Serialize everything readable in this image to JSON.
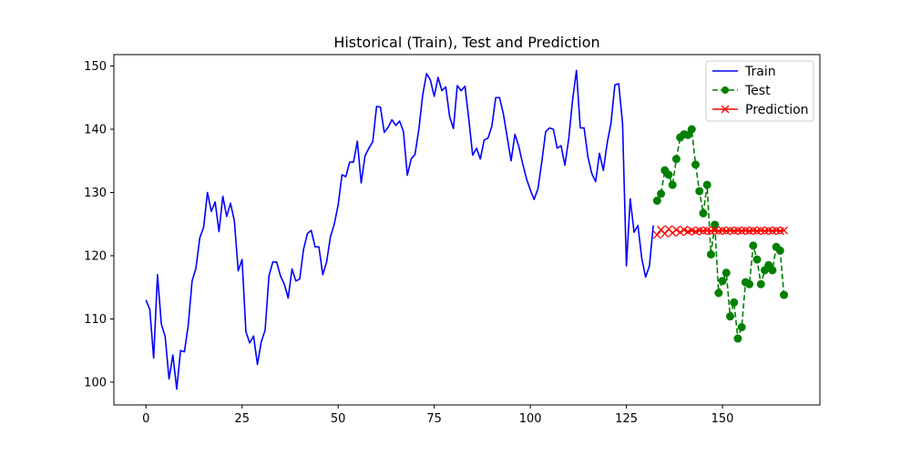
{
  "chart_data": {
    "type": "line",
    "title": "Historical (Train), Test and Prediction",
    "xlabel": "",
    "ylabel": "",
    "xlim": [
      -8.35,
      175.35
    ],
    "ylim": [
      96.4,
      151.8
    ],
    "x_ticks": [
      0,
      25,
      50,
      75,
      100,
      125,
      150
    ],
    "y_ticks": [
      100,
      110,
      120,
      130,
      140,
      150
    ],
    "x_tick_labels": [
      "0",
      "25",
      "50",
      "75",
      "100",
      "125",
      "150"
    ],
    "y_tick_labels": [
      "100",
      "110",
      "120",
      "130",
      "140",
      "150"
    ],
    "grid": false,
    "legend_position": "top-right",
    "series": [
      {
        "name": "Train",
        "color": "#0000ff",
        "line_style": "solid",
        "marker": "none",
        "x_start": 0,
        "values": [
          113.0,
          111.5,
          103.8,
          117.0,
          109.2,
          107.2,
          100.5,
          104.3,
          98.9,
          105.0,
          104.8,
          109.0,
          116.0,
          118.0,
          122.8,
          124.5,
          130.0,
          127.0,
          128.5,
          123.8,
          129.4,
          126.2,
          128.3,
          125.5,
          117.6,
          119.4,
          108.0,
          106.2,
          107.3,
          102.8,
          106.4,
          108.2,
          116.8,
          119.0,
          119.0,
          116.8,
          115.5,
          113.3,
          117.9,
          116.0,
          116.3,
          121.0,
          123.5,
          124.0,
          121.4,
          121.4,
          117.0,
          119.0,
          123.0,
          125.0,
          128.0,
          132.8,
          132.5,
          134.8,
          134.8,
          138.1,
          131.5,
          135.8,
          137.0,
          138.0,
          143.6,
          143.5,
          139.5,
          140.3,
          141.5,
          140.6,
          141.3,
          139.6,
          132.7,
          135.3,
          136.0,
          140.0,
          145.4,
          148.8,
          147.8,
          145.2,
          148.2,
          146.1,
          146.7,
          142.0,
          140.1,
          146.9,
          146.1,
          146.8,
          141.6,
          135.9,
          137.0,
          135.3,
          138.3,
          138.6,
          140.5,
          145.0,
          145.0,
          142.4,
          138.7,
          135.0,
          139.2,
          137.3,
          134.6,
          132.2,
          130.4,
          128.9,
          130.6,
          134.9,
          139.6,
          140.2,
          140.0,
          137.0,
          137.4,
          134.3,
          138.5,
          144.6,
          149.3,
          140.2,
          140.2,
          135.6,
          133.0,
          131.7,
          136.2,
          133.5,
          137.8,
          141.0,
          147.0,
          147.2,
          141.0,
          118.4,
          129.0,
          123.7,
          124.8,
          119.6,
          116.6,
          118.4,
          124.8
        ]
      },
      {
        "name": "Test",
        "color": "#008000",
        "line_style": "dashed",
        "marker": "circle",
        "x_start": 133,
        "values": [
          128.7,
          129.8,
          133.5,
          132.8,
          131.2,
          135.3,
          138.7,
          139.2,
          139.1,
          140.0,
          134.4,
          130.2,
          126.7,
          131.2,
          120.2,
          124.9,
          114.1,
          116.0,
          117.3,
          110.4,
          112.6,
          106.9,
          108.7,
          115.8,
          115.5,
          121.6,
          119.4,
          115.5,
          117.7,
          118.5,
          117.7,
          121.4,
          120.8,
          113.8
        ]
      },
      {
        "name": "Prediction",
        "color": "#ff0000",
        "line_style": "solid",
        "marker": "x",
        "x_start": 133,
        "values": [
          123.3,
          124.1,
          123.5,
          124.2,
          123.6,
          124.1,
          123.7,
          124.1,
          123.8,
          124.0,
          123.8,
          124.0,
          123.9,
          124.0,
          123.9,
          124.0,
          123.9,
          124.0,
          123.9,
          124.0,
          123.9,
          124.0,
          123.9,
          124.0,
          123.9,
          124.0,
          123.9,
          124.0,
          123.9,
          124.0,
          123.9,
          124.0,
          123.9,
          124.0
        ]
      }
    ]
  }
}
